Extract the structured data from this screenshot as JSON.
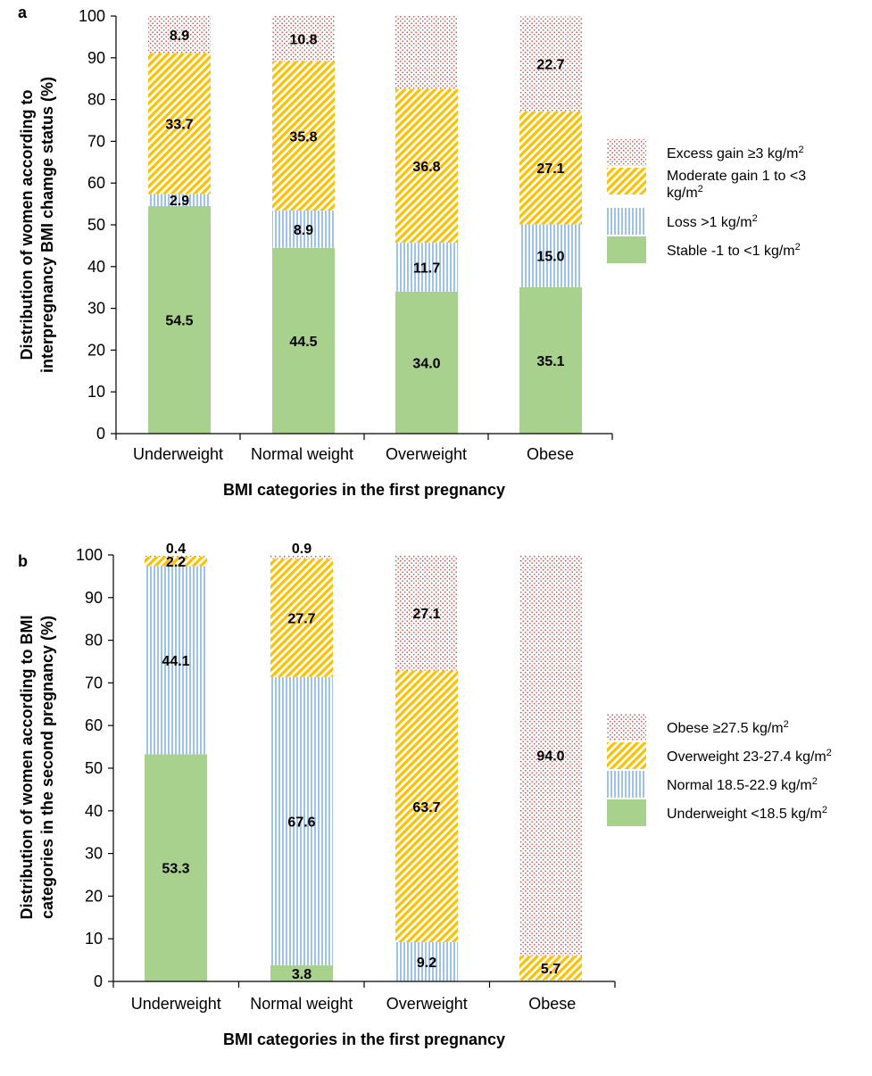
{
  "chart_data": [
    {
      "panel": "a",
      "type": "bar",
      "stacked": true,
      "categories": [
        "Underweight",
        "Normal weight",
        "Overweight",
        "Obese"
      ],
      "xlabel": "BMI categories in the first pregnancy",
      "ylabel_lines": [
        "Distribution of women according to",
        "interpregnancy BMI chamge status (%)"
      ],
      "ylim": [
        0,
        100
      ],
      "yticks": [
        0,
        10,
        20,
        30,
        40,
        50,
        60,
        70,
        80,
        90,
        100
      ],
      "grid": false,
      "legend_position": "right",
      "series": [
        {
          "name": "Stable -1 to <1 kg/m",
          "sup": "2",
          "pattern": "solid",
          "color": "#a9d18e",
          "values": [
            54.5,
            44.5,
            34.0,
            35.1
          ],
          "labels": [
            "54.5",
            "44.5",
            "34.0",
            "35.1"
          ]
        },
        {
          "name": "Loss >1 kg/m",
          "sup": "2",
          "pattern": "vstripes",
          "color": "#9dc3e6",
          "values": [
            2.9,
            8.9,
            11.7,
            15.0
          ],
          "labels": [
            "2.9",
            "8.9",
            "11.7",
            "15.0"
          ]
        },
        {
          "name": "Moderate gain 1 to <3 kg/m",
          "sup": "2",
          "pattern": "diag",
          "color": "#ffc000",
          "values": [
            33.7,
            35.8,
            36.8,
            27.1
          ],
          "labels": [
            "33.7",
            "35.8",
            "36.8",
            "27.1"
          ]
        },
        {
          "name": "Excess gain ≥3 kg/m",
          "sup": "2",
          "pattern": "dots",
          "color": "#c0504d",
          "values": [
            8.9,
            10.8,
            17.5,
            22.7
          ],
          "labels": [
            "8.9",
            "10.8",
            "",
            "22.7"
          ]
        }
      ]
    },
    {
      "panel": "b",
      "type": "bar",
      "stacked": true,
      "categories": [
        "Underweight",
        "Normal weight",
        "Overweight",
        "Obese"
      ],
      "xlabel": "BMI categories in the first pregnancy",
      "ylabel_lines": [
        "Distribution of women according to BMI",
        "categories in the second pregnancy (%)"
      ],
      "ylim": [
        0,
        100
      ],
      "yticks": [
        0,
        10,
        20,
        30,
        40,
        50,
        60,
        70,
        80,
        90,
        100
      ],
      "grid": false,
      "legend_position": "right",
      "series": [
        {
          "name": "Underweight <18.5 kg/m",
          "sup": "2",
          "pattern": "solid",
          "color": "#a9d18e",
          "values": [
            53.3,
            3.8,
            0,
            0
          ],
          "labels": [
            "53.3",
            "3.8",
            "",
            ""
          ]
        },
        {
          "name": "Normal 18.5-22.9 kg/m",
          "sup": "2",
          "pattern": "vstripes",
          "color": "#9dc3e6",
          "values": [
            44.1,
            67.6,
            9.2,
            0.3
          ],
          "labels": [
            "44.1",
            "67.6",
            "9.2",
            ""
          ]
        },
        {
          "name": "Overweight 23-27.4 kg/m",
          "sup": "2",
          "pattern": "diag",
          "color": "#ffc000",
          "values": [
            2.2,
            27.7,
            63.7,
            5.7
          ],
          "labels": [
            "2.2",
            "27.7",
            "63.7",
            "5.7"
          ]
        },
        {
          "name": "Obese ≥27.5 kg/m",
          "sup": "2",
          "pattern": "dots",
          "color": "#c0504d",
          "values": [
            0.4,
            0.9,
            27.1,
            94.0
          ],
          "labels": [
            "0.4",
            "0.9",
            "27.1",
            "94.0"
          ]
        }
      ]
    }
  ]
}
